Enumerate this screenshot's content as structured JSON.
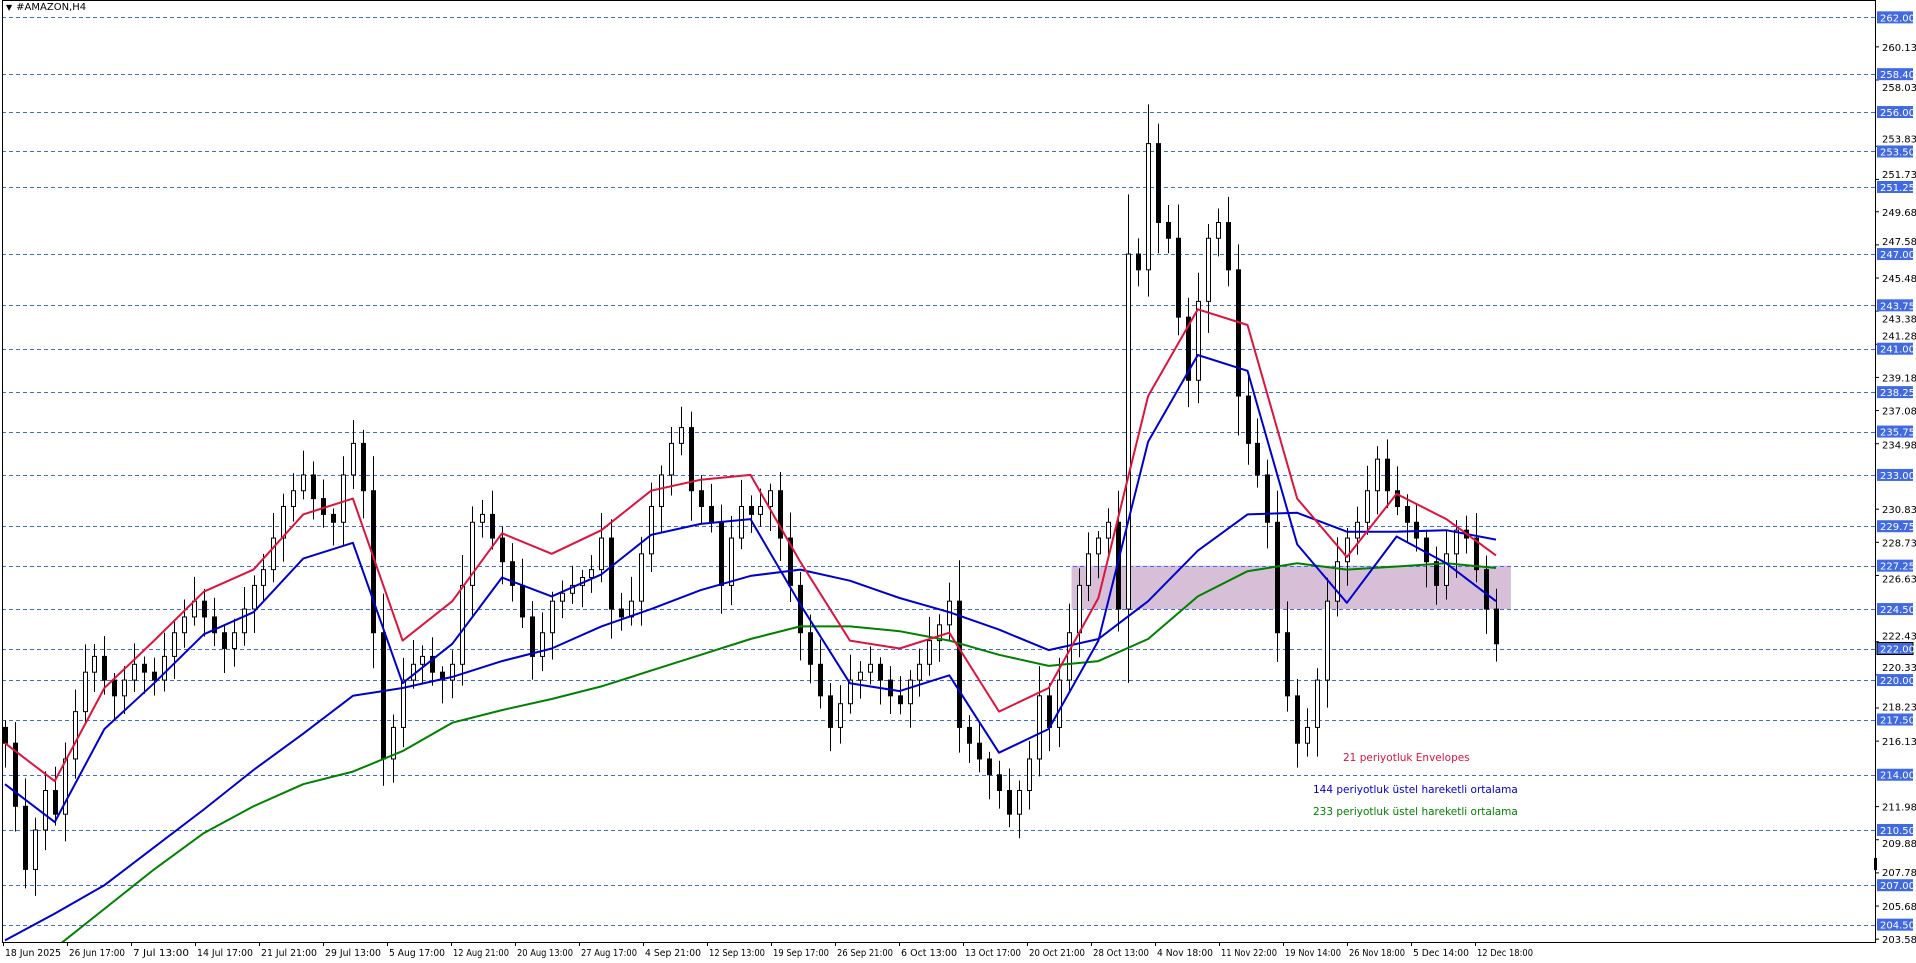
{
  "window": {
    "title": "#AMAZON,H4",
    "menu_icon": "triangle-down-icon"
  },
  "chart_data": {
    "type": "candlestick",
    "symbol": "#AMAZON",
    "timeframe": "H4",
    "ylim": [
      203.4,
      263.1
    ],
    "grid": false,
    "colors": {
      "up_body": "#ffffff",
      "down_body": "#000000",
      "wick": "#000000",
      "level_line": "#4169e1",
      "level_label_bg": "#4169e1",
      "zone": "#d8bfd8"
    },
    "x_tick_labels": [
      "18 Jun 2025",
      "26 Jun 17:00",
      "7 Jul 13:00",
      "14 Jul 17:00",
      "21 Jul 21:00",
      "29 Jul 13:00",
      "5 Aug 17:00",
      "12 Aug 21:00",
      "20 Aug 13:00",
      "27 Aug 17:00",
      "4 Sep 21:00",
      "12 Sep 13:00",
      "19 Sep 17:00",
      "26 Sep 21:00",
      "6 Oct 13:00",
      "13 Oct 17:00",
      "20 Oct 21:00",
      "28 Oct 13:00",
      "4 Nov 18:00",
      "11 Nov 22:00",
      "19 Nov 14:00",
      "26 Nov 18:00",
      "5 Dec 14:00",
      "12 Dec 18:00"
    ],
    "y_tick_labels": [
      "260.13",
      "258.03",
      "253.83",
      "251.73",
      "249.68",
      "247.58",
      "245.48",
      "243.38",
      "241.28",
      "239.18",
      "237.08",
      "234.98",
      "230.83",
      "228.73",
      "226.63",
      "222.43",
      "220.33",
      "218.23",
      "216.13",
      "211.98",
      "209.88",
      "207.78",
      "205.68",
      "203.58"
    ],
    "levels": [
      "262.00",
      "258.40",
      "256.00",
      "253.50",
      "251.25",
      "247.00",
      "243.75",
      "241.00",
      "238.25",
      "235.75",
      "233.00",
      "229.75",
      "227.25",
      "224.50",
      "222.00",
      "220.00",
      "217.50",
      "214.00",
      "210.50",
      "207.00",
      "204.50"
    ],
    "current_price": "222.00",
    "zone": {
      "from": 224.5,
      "to": 227.25
    },
    "first_open": 217,
    "closes": [
      216,
      212,
      208,
      210.5,
      213,
      211.5,
      215,
      218,
      220.5,
      221.5,
      220,
      219,
      220,
      221,
      220.5,
      220,
      221.5,
      223,
      224,
      225,
      224,
      223,
      222,
      223,
      224.5,
      226,
      227,
      229,
      231,
      232,
      233,
      231.5,
      230.5,
      230,
      233,
      235,
      232,
      223,
      215,
      217,
      220,
      221,
      221.5,
      220.5,
      220,
      221,
      226,
      230,
      230.5,
      229,
      227.5,
      226,
      224,
      221.5,
      223,
      225,
      225.5,
      226,
      226.5,
      227,
      229,
      224.5,
      224,
      225,
      228,
      231,
      233,
      235,
      236,
      232,
      231,
      230,
      226,
      229,
      231,
      230.5,
      231,
      232,
      229,
      226,
      223,
      221,
      219,
      217,
      218.5,
      220,
      220.5,
      221,
      220,
      219,
      218.5,
      220,
      221,
      222.5,
      223.5,
      225,
      217,
      216,
      215,
      214,
      213,
      211.5,
      213,
      215,
      219,
      217,
      220,
      223,
      226,
      228,
      229,
      230,
      224.5,
      247,
      246,
      254,
      249,
      248,
      243,
      239,
      244,
      248,
      249,
      246,
      238,
      235,
      233,
      230,
      223,
      219,
      216,
      217,
      220,
      225,
      227.5,
      229,
      230,
      232,
      234,
      232,
      231,
      230,
      229,
      227.5,
      226,
      228,
      229.5,
      229,
      227,
      224.5,
      222.3
    ],
    "indicator_sample_every": 5,
    "indicators": [
      {
        "name": "21 periyotluk Envelopes",
        "color": "#dc143c",
        "upper": [
          216,
          213.6,
          219.5,
          222.5,
          225.6,
          227,
          230.5,
          231.5,
          222.5,
          225,
          229.3,
          228,
          229.5,
          232,
          232.7,
          233,
          227.5,
          222.5,
          222,
          223,
          218,
          219.5,
          225.2,
          238,
          243.5,
          242.5,
          231.5,
          227.8,
          231.8,
          230.2,
          227.9
        ],
        "lower_color": "#0000cd",
        "lower": [
          213.4,
          211.0,
          216.9,
          219.8,
          222.9,
          224.3,
          227.7,
          228.7,
          219.8,
          222.3,
          226.5,
          225.3,
          226.7,
          229.2,
          229.9,
          230.2,
          224.8,
          219.8,
          219.3,
          220.3,
          215.4,
          216.9,
          222.5,
          235.1,
          240.6,
          239.6,
          228.6,
          224.9,
          229.1,
          227.4,
          225.0
        ]
      },
      {
        "name": "144 periyotluk üstel hareketli ortalama",
        "color": "#0000cd",
        "values": [
          203.5,
          205.2,
          207,
          209.4,
          211.8,
          214.3,
          216.6,
          219,
          219.5,
          220.2,
          221.2,
          222,
          223.4,
          224.5,
          225.7,
          226.6,
          227.0,
          226.3,
          225.2,
          224.3,
          223.2,
          221.9,
          222.6,
          225,
          228.2,
          230.5,
          230.6,
          229.4,
          229.4,
          229.5,
          228.9
        ]
      },
      {
        "name": "233 periyotluk üstel hareketli ortalama",
        "color": "#008000",
        "values": [
          201.5,
          203.0,
          205.5,
          208,
          210.3,
          212,
          213.4,
          214.2,
          215.5,
          217.3,
          218.1,
          218.8,
          219.6,
          220.6,
          221.6,
          222.6,
          223.4,
          223.4,
          223.1,
          222.5,
          221.6,
          220.9,
          221.2,
          222.6,
          225.3,
          226.9,
          227.4,
          227.0,
          227.2,
          227.4,
          227.1
        ]
      }
    ]
  }
}
